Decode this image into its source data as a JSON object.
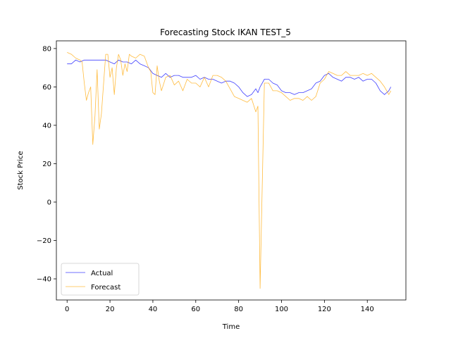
{
  "chart_data": {
    "type": "line",
    "title": "Forecasting Stock IKAN TEST_5",
    "xlabel": "Time",
    "ylabel": "Stock Price",
    "xlim": [
      -5,
      158
    ],
    "ylim": [
      -51,
      84
    ],
    "xticks": [
      0,
      20,
      40,
      60,
      80,
      100,
      120,
      140
    ],
    "yticks": [
      -40,
      -20,
      0,
      20,
      40,
      60,
      80
    ],
    "grid": false,
    "legend_position": "lower-left",
    "series": [
      {
        "name": "Actual",
        "color": "#0000ff",
        "x": [
          0,
          2,
          4,
          6,
          8,
          10,
          12,
          14,
          16,
          18,
          20,
          22,
          24,
          26,
          28,
          30,
          32,
          34,
          36,
          38,
          40,
          42,
          44,
          46,
          48,
          50,
          52,
          54,
          56,
          58,
          60,
          62,
          64,
          66,
          68,
          70,
          72,
          74,
          76,
          78,
          80,
          82,
          84,
          86,
          88,
          89,
          90,
          92,
          94,
          96,
          98,
          100,
          102,
          104,
          106,
          108,
          110,
          112,
          114,
          116,
          118,
          120,
          122,
          124,
          126,
          128,
          130,
          132,
          134,
          136,
          138,
          140,
          142,
          144,
          146,
          148,
          150,
          151
        ],
        "y": [
          72,
          72,
          74,
          73,
          74,
          74,
          74,
          74,
          74,
          74,
          73,
          72,
          74,
          73,
          73,
          72,
          74,
          72,
          71,
          70,
          67,
          66,
          65,
          67,
          65,
          66,
          66,
          65,
          65,
          65,
          66,
          64,
          65,
          64,
          64,
          63,
          62,
          63,
          63,
          62,
          60,
          57,
          55,
          56,
          59,
          57,
          60,
          64,
          64,
          62,
          61,
          58,
          57,
          57,
          56,
          57,
          57,
          58,
          59,
          62,
          63,
          66,
          67,
          65,
          64,
          63,
          65,
          65,
          64,
          65,
          63,
          64,
          64,
          62,
          58,
          56,
          58,
          60
        ],
        "series_name_label": "Actual"
      },
      {
        "name": "Forecast",
        "color": "#ffa500",
        "x": [
          0,
          2,
          4,
          6,
          7,
          8,
          9,
          10,
          11,
          12,
          13,
          14,
          15,
          16,
          18,
          19,
          20,
          21,
          22,
          23,
          24,
          25,
          26,
          27,
          28,
          29,
          30,
          32,
          34,
          36,
          38,
          39,
          40,
          41,
          42,
          43,
          44,
          46,
          48,
          50,
          52,
          54,
          56,
          58,
          60,
          62,
          64,
          66,
          68,
          70,
          72,
          74,
          76,
          78,
          80,
          82,
          84,
          86,
          88,
          89,
          90,
          91,
          92,
          94,
          96,
          98,
          100,
          102,
          104,
          106,
          108,
          110,
          112,
          114,
          116,
          118,
          120,
          122,
          124,
          126,
          128,
          130,
          132,
          134,
          136,
          138,
          140,
          142,
          144,
          146,
          148,
          150,
          151
        ],
        "y": [
          78,
          77,
          75,
          74,
          73,
          62,
          53,
          57,
          60,
          30,
          45,
          69,
          38,
          46,
          77,
          77,
          65,
          70,
          56,
          70,
          77,
          74,
          66,
          72,
          68,
          77,
          76,
          75,
          77,
          76,
          70,
          68,
          57,
          56,
          71,
          63,
          58,
          65,
          66,
          61,
          63,
          58,
          64,
          62,
          62,
          60,
          65,
          60,
          66,
          66,
          65,
          63,
          59,
          55,
          54,
          53,
          52,
          54,
          47,
          50,
          -45,
          8,
          62,
          62,
          58,
          58,
          57,
          55,
          53,
          54,
          54,
          53,
          55,
          53,
          55,
          62,
          64,
          68,
          67,
          66,
          66,
          68,
          66,
          66,
          66,
          67,
          66,
          67,
          65,
          63,
          60,
          56,
          58
        ]
      }
    ]
  }
}
